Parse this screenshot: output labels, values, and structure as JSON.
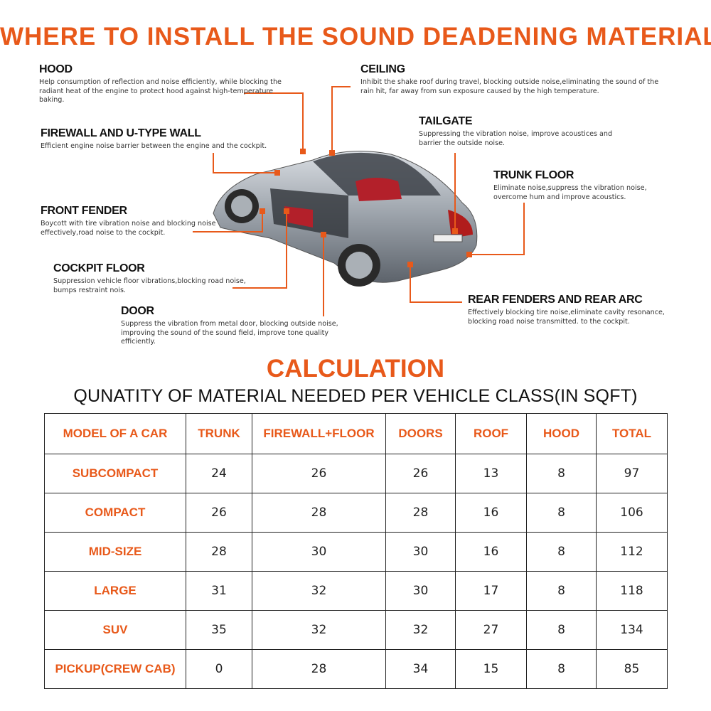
{
  "title": "WHERE TO INSTALL THE SOUND DEADENING MATERIAL",
  "accent_color": "#e8591a",
  "labels": {
    "hood": {
      "title": "HOOD",
      "desc": "Help consumption of reflection and noise efficiently, while blocking the radiant heat of the engine to protect hood against high-temperature baking."
    },
    "ceiling": {
      "title": "CEILING",
      "desc": "Inhibit the shake roof during travel, blocking outside noise,eliminating the sound of the rain hit, far away from sun exposure caused by the high temperature."
    },
    "firewall": {
      "title": "FIREWALL AND U-TYPE WALL",
      "desc": "Efficient engine noise barrier between the engine and the cockpit."
    },
    "tailgate": {
      "title": "TAILGATE",
      "desc": "Suppressing the vibration noise, improve acoustices and barrier the outside noise."
    },
    "trunk_floor": {
      "title": "TRUNK FLOOR",
      "desc": "Eliminate noise,suppress the vibration noise, overcome hum and improve acoustics."
    },
    "front_fender": {
      "title": "FRONT FENDER",
      "desc": "Boycott with tire vibration noise and blocking noise effectively,road noise to the cockpit."
    },
    "cockpit_floor": {
      "title": "COCKPIT FLOOR",
      "desc": "Suppression vehicle floor vibrations,blocking road noise, bumps restraint nois."
    },
    "door": {
      "title": "DOOR",
      "desc": "Suppress the vibration from metal door, blocking outside noise, improving the sound of the sound field, improve tone quality efficiently."
    },
    "rear_fenders": {
      "title": "REAR FENDERS AND REAR ARC",
      "desc": "Effectively blocking tire noise,eliminate cavity resonance, blocking road noise transmitted. to the cockpit."
    }
  },
  "calculation": {
    "heading": "CALCULATION",
    "subtitle": "QUNATITY OF MATERIAL NEEDED PER VEHICLE CLASS(IN SQFT)",
    "columns": [
      "MODEL OF A CAR",
      "TRUNK",
      "FIREWALL+FLOOR",
      "DOORS",
      "ROOF",
      "HOOD",
      "TOTAL"
    ],
    "rows": [
      [
        "SUBCOMPACT",
        "24",
        "26",
        "26",
        "13",
        "8",
        "97"
      ],
      [
        "COMPACT",
        "26",
        "28",
        "28",
        "16",
        "8",
        "106"
      ],
      [
        "MID-SIZE",
        "28",
        "30",
        "30",
        "16",
        "8",
        "112"
      ],
      [
        "LARGE",
        "31",
        "32",
        "30",
        "17",
        "8",
        "118"
      ],
      [
        "SUV",
        "35",
        "32",
        "32",
        "27",
        "8",
        "134"
      ],
      [
        "PICKUP(CREW CAB)",
        "0",
        "28",
        "34",
        "15",
        "8",
        "85"
      ]
    ]
  }
}
